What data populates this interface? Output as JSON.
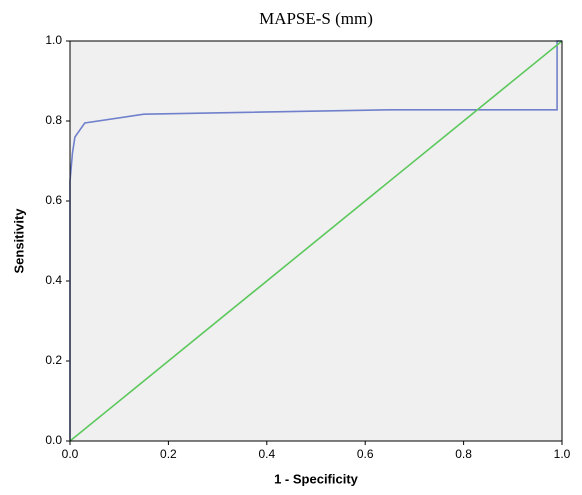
{
  "chart_data": {
    "type": "line",
    "title": "MAPSE-S (mm)",
    "x_label": "1 - Specificity",
    "y_label": "Sensitivity",
    "xlim": [
      0,
      1
    ],
    "ylim": [
      0,
      1
    ],
    "xticks": [
      {
        "value": 0,
        "label": "0.0"
      },
      0.2,
      0.4,
      0.6,
      0.8,
      {
        "value": 1,
        "label": "1.0"
      }
    ],
    "yticks": [
      {
        "value": 0,
        "label": "0.0"
      },
      0.2,
      0.4,
      0.6,
      0.8,
      {
        "value": 1,
        "label": "1.0"
      }
    ],
    "series": [
      {
        "color": "#7080cc",
        "x": [
          0,
          0,
          0.005,
          0.01,
          0.03,
          0.15,
          0.65,
          0.99,
          0.99,
          1.0
        ],
        "values": [
          0,
          0.65,
          0.72,
          0.76,
          0.795,
          0.817,
          0.828,
          0.828,
          1.0,
          1.0
        ]
      },
      {
        "color": "#5cc85c",
        "x": [
          0,
          1
        ],
        "values": [
          0,
          1
        ]
      }
    ]
  }
}
